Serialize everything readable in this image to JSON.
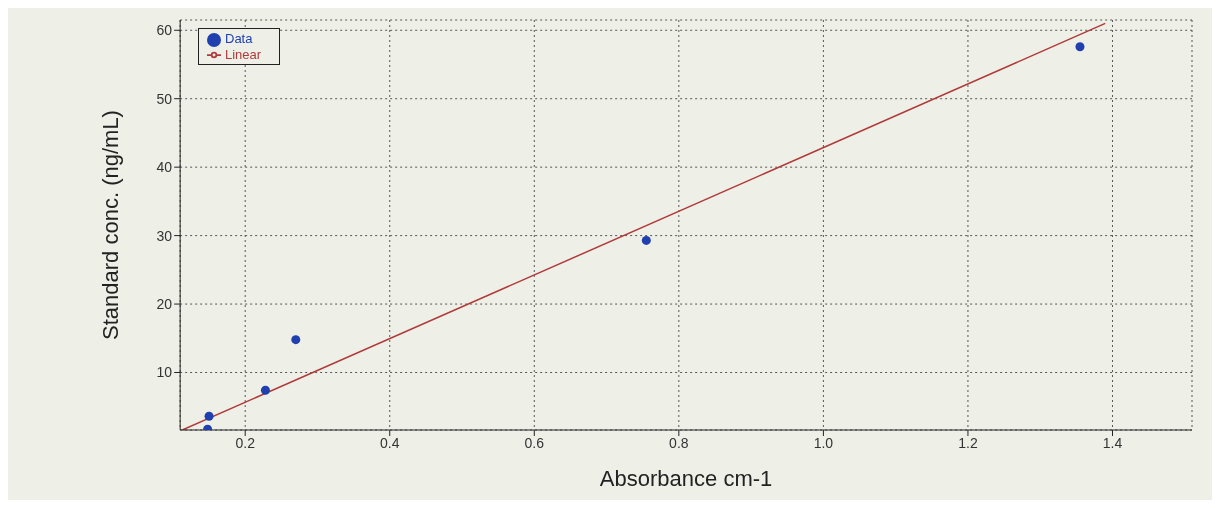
{
  "chart_data": {
    "type": "scatter",
    "xlabel": "Absorbance cm-1",
    "ylabel": "Standard conc. (ng/mL)",
    "xlim": [
      0.11,
      1.51
    ],
    "ylim": [
      1.6,
      61.5
    ],
    "xticks": [
      0.2,
      0.4,
      0.6,
      0.8,
      {
        "value": 1,
        "label": "1.0"
      },
      1.2,
      1.4
    ],
    "yticks": [
      10,
      20,
      30,
      40,
      50,
      60
    ],
    "grid": true,
    "legend": "top left",
    "series": [
      {
        "name": "Data",
        "color": "#2040b0",
        "marker": "circle",
        "x": [
          0.148,
          0.15,
          0.228,
          0.27,
          0.755,
          1.355
        ],
        "values": [
          1.7,
          3.6,
          7.4,
          14.8,
          29.3,
          57.6
        ]
      },
      {
        "name": "Linear",
        "type": "line",
        "color": "#b03a3a",
        "marker": "none",
        "line_style": "solid",
        "x": [
          0.113,
          1.39
        ],
        "values": [
          1.6,
          61
        ]
      }
    ]
  }
}
